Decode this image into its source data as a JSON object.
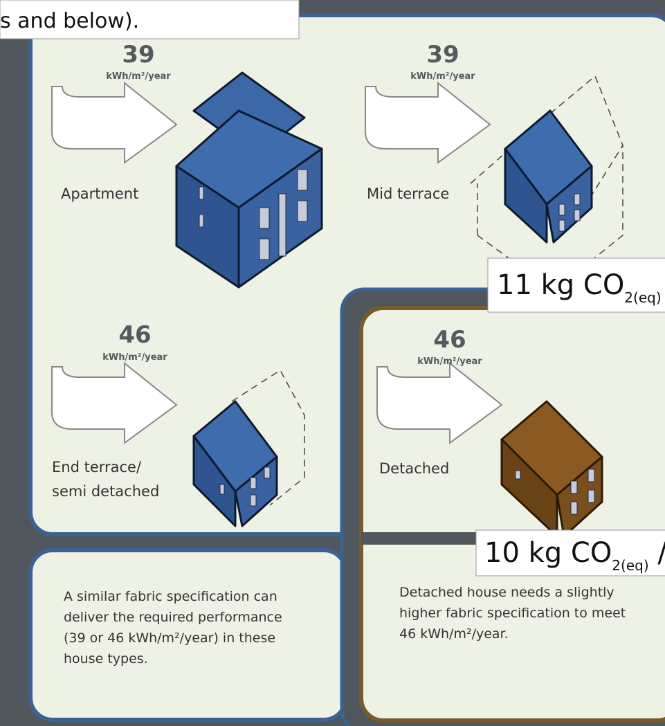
{
  "header_fragment": "s and below).",
  "panels": [
    {
      "value": 39,
      "unit": "kWh/m²/year",
      "label": [
        "Apartment"
      ]
    },
    {
      "value": 39,
      "unit": "kWh/m²/year",
      "label": [
        "Mid terrace"
      ]
    },
    {
      "value": 46,
      "unit": "kWh/m²/year",
      "label": [
        "End terrace/",
        "semi detached"
      ]
    },
    {
      "value": 46,
      "unit": "kWh/m²/year",
      "label": [
        "Detached"
      ]
    }
  ],
  "co2_labels": [
    {
      "prefix": "11 kg CO",
      "sub": "2(eq)",
      "suffix": " /"
    },
    {
      "prefix": "10 kg CO",
      "sub": "2(eq)",
      "suffix": " /n"
    }
  ],
  "notes": [
    [
      "A similar fabric specification can",
      "deliver the required performance",
      "(39 or 46 kWh/m²/year) in these",
      "house types."
    ],
    [
      "Detached house needs a slightly",
      "higher fabric specification to meet",
      "46 kWh/m²/year."
    ]
  ]
}
